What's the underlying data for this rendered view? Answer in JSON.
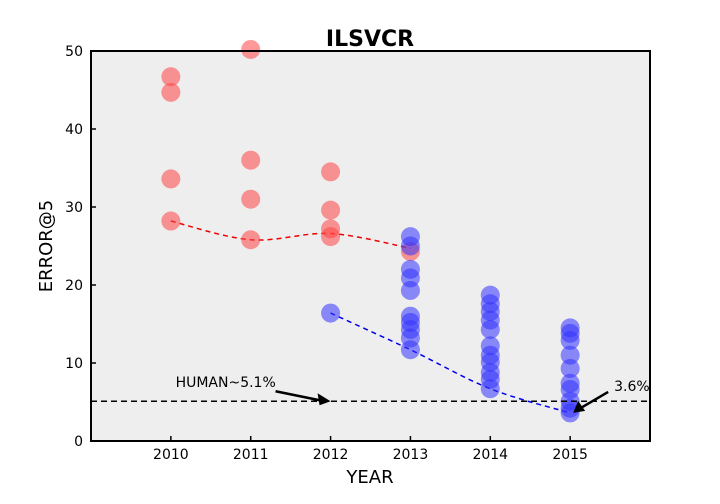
{
  "chart_data": {
    "type": "scatter",
    "title": "ILSVCR",
    "xlabel": "YEAR",
    "ylabel": "ERROR@5",
    "xlim": [
      2009,
      2016
    ],
    "ylim": [
      0,
      50
    ],
    "x_ticks": [
      "2010",
      "2011",
      "2012",
      "2013",
      "2014",
      "2015"
    ],
    "y_ticks": [
      "0",
      "10",
      "20",
      "30",
      "40",
      "50"
    ],
    "grid": false,
    "legend": "none",
    "series": [
      {
        "color": "#ff4444",
        "marker": "circle",
        "points": [
          {
            "x": 2010,
            "y": 46.7
          },
          {
            "x": 2010,
            "y": 44.7
          },
          {
            "x": 2010,
            "y": 33.6
          },
          {
            "x": 2010,
            "y": 28.2
          },
          {
            "x": 2011,
            "y": 50.2
          },
          {
            "x": 2011,
            "y": 36.0
          },
          {
            "x": 2011,
            "y": 31.0
          },
          {
            "x": 2011,
            "y": 25.8
          },
          {
            "x": 2012,
            "y": 34.5
          },
          {
            "x": 2012,
            "y": 29.6
          },
          {
            "x": 2012,
            "y": 27.2
          },
          {
            "x": 2012,
            "y": 26.2
          },
          {
            "x": 2013,
            "y": 24.3
          }
        ]
      },
      {
        "color": "#3333ff",
        "marker": "circle",
        "points": [
          {
            "x": 2012,
            "y": 16.4
          },
          {
            "x": 2013,
            "y": 26.2
          },
          {
            "x": 2013,
            "y": 25.0
          },
          {
            "x": 2013,
            "y": 22.0
          },
          {
            "x": 2013,
            "y": 20.9
          },
          {
            "x": 2013,
            "y": 19.3
          },
          {
            "x": 2013,
            "y": 16.0
          },
          {
            "x": 2013,
            "y": 15.2
          },
          {
            "x": 2013,
            "y": 14.3
          },
          {
            "x": 2013,
            "y": 13.2
          },
          {
            "x": 2013,
            "y": 11.7
          },
          {
            "x": 2014,
            "y": 18.7
          },
          {
            "x": 2014,
            "y": 17.6
          },
          {
            "x": 2014,
            "y": 16.6
          },
          {
            "x": 2014,
            "y": 15.5
          },
          {
            "x": 2014,
            "y": 14.3
          },
          {
            "x": 2014,
            "y": 12.2
          },
          {
            "x": 2014,
            "y": 11.0
          },
          {
            "x": 2014,
            "y": 10.1
          },
          {
            "x": 2014,
            "y": 8.8
          },
          {
            "x": 2014,
            "y": 7.9
          },
          {
            "x": 2014,
            "y": 6.7
          },
          {
            "x": 2015,
            "y": 14.5
          },
          {
            "x": 2015,
            "y": 13.8
          },
          {
            "x": 2015,
            "y": 12.9
          },
          {
            "x": 2015,
            "y": 11.0
          },
          {
            "x": 2015,
            "y": 9.3
          },
          {
            "x": 2015,
            "y": 7.4
          },
          {
            "x": 2015,
            "y": 6.6
          },
          {
            "x": 2015,
            "y": 5.1
          },
          {
            "x": 2015,
            "y": 4.2
          },
          {
            "x": 2015,
            "y": 3.6
          }
        ]
      }
    ],
    "trend_lines": [
      {
        "color": "#ee0000",
        "style": "dashed",
        "points": [
          {
            "x": 2010,
            "y": 28.2
          },
          {
            "x": 2011,
            "y": 25.8
          },
          {
            "x": 2012,
            "y": 26.6
          },
          {
            "x": 2013,
            "y": 24.7
          }
        ]
      },
      {
        "color": "#0000ee",
        "style": "dashed",
        "points": [
          {
            "x": 2012,
            "y": 16.4
          },
          {
            "x": 2013,
            "y": 11.7
          },
          {
            "x": 2014,
            "y": 6.7
          },
          {
            "x": 2015,
            "y": 3.6
          }
        ]
      }
    ],
    "reference_line": {
      "y": 5.1,
      "color": "#000000",
      "style": "dashed"
    },
    "annotations": [
      {
        "text": "HUMAN~5.1%",
        "x": 2012,
        "y": 5.1
      },
      {
        "text": "3.6%",
        "x": 2015,
        "y": 3.6
      }
    ]
  }
}
